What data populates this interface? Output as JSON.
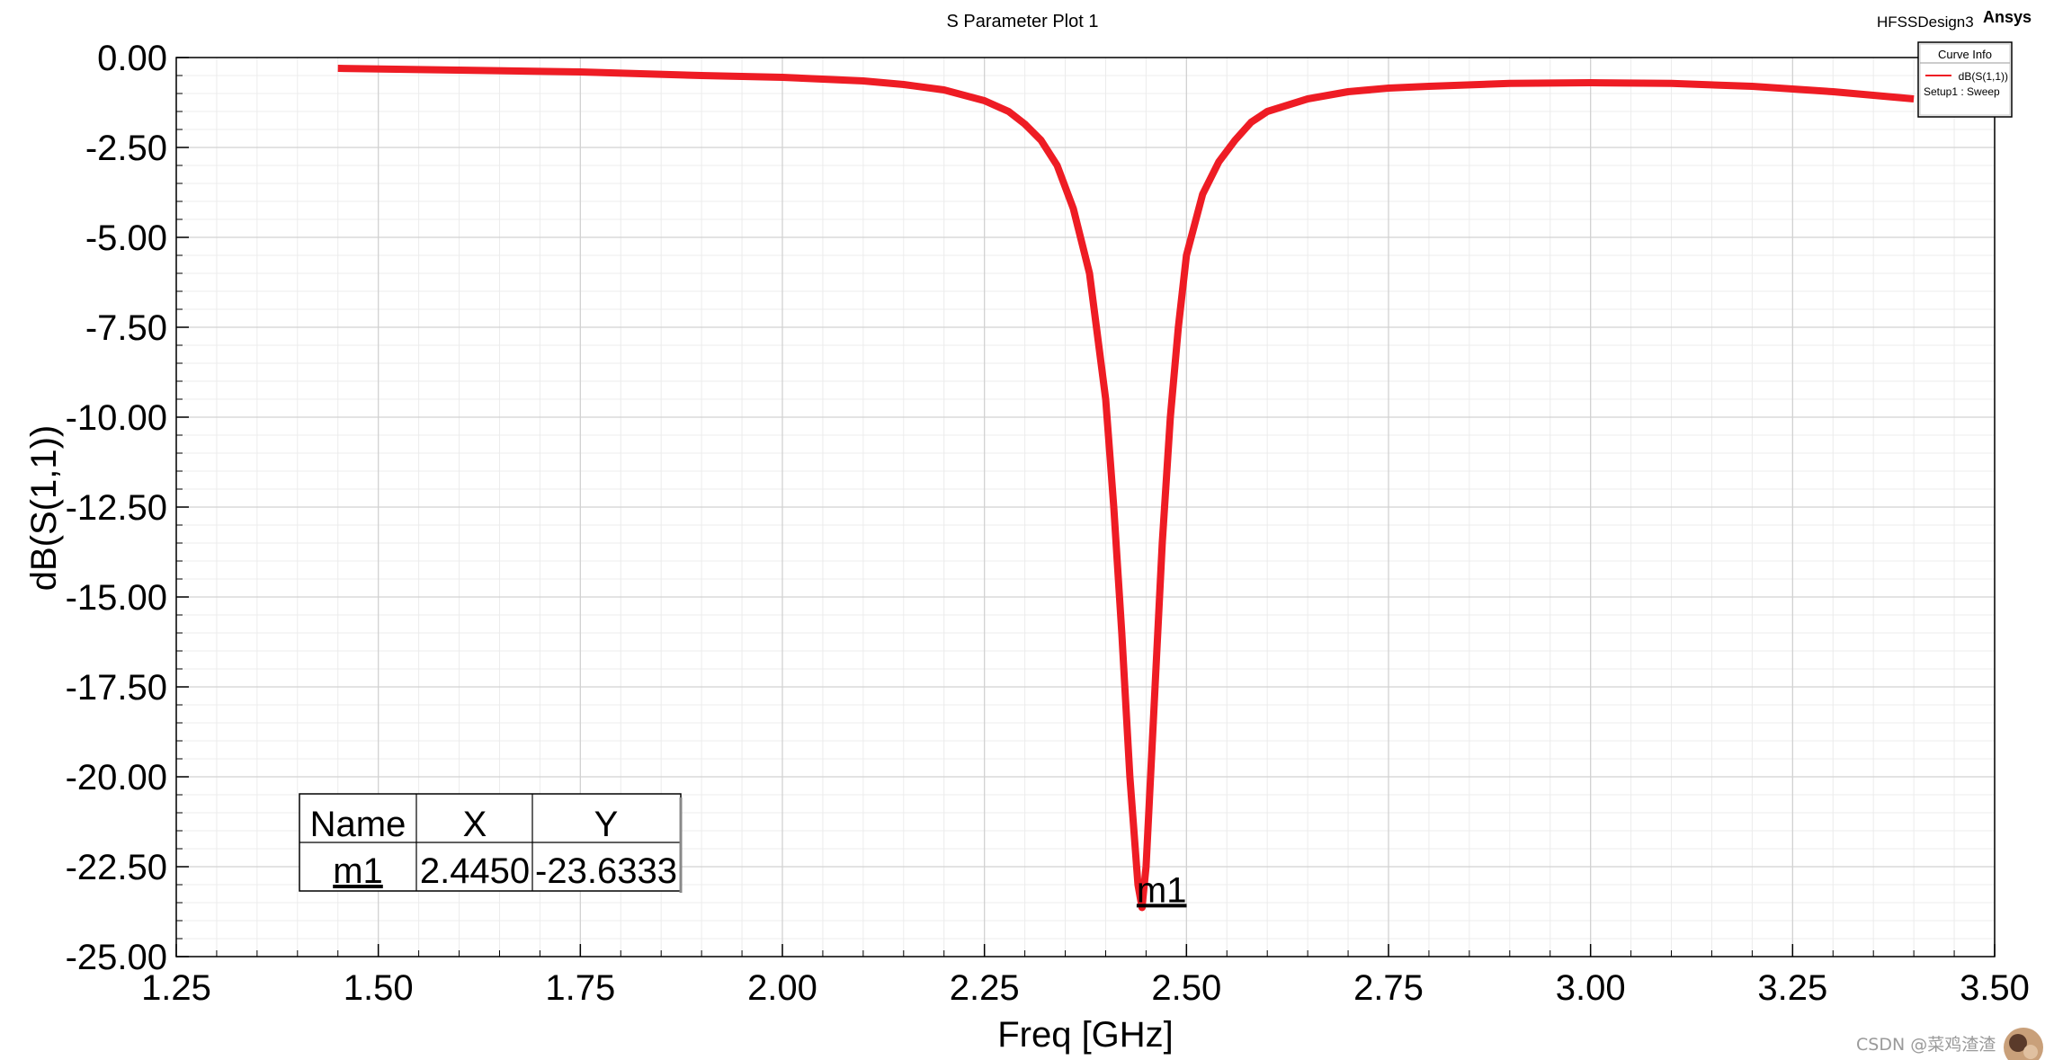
{
  "header": {
    "title": "S Parameter Plot 1",
    "design": "HFSSDesign3",
    "brand": "Ansys"
  },
  "legend": {
    "title": "Curve Info",
    "series_label": "dB(S(1,1))",
    "setup_label": "Setup1 : Sweep"
  },
  "marker_table": {
    "headers": [
      "Name",
      "X",
      "Y"
    ],
    "rows": [
      [
        "m1",
        "2.4450",
        "-23.6333"
      ]
    ]
  },
  "marker": {
    "label": "m1",
    "x": 2.445,
    "y": -23.6333
  },
  "watermark": "CSDN @菜鸡渣渣",
  "colors": {
    "curve": "#ee1c24",
    "grid": "#dcdcdc",
    "axis": "#000000"
  },
  "chart_data": {
    "type": "line",
    "title": "S Parameter Plot 1",
    "xlabel": "Freq [GHz]",
    "ylabel": "dB(S(1,1))",
    "xlim": [
      1.25,
      3.5
    ],
    "ylim": [
      -25.0,
      0.0
    ],
    "xticks": [
      "1.25",
      "1.50",
      "1.75",
      "2.00",
      "2.25",
      "2.50",
      "2.75",
      "3.00",
      "3.25",
      "3.50"
    ],
    "yticks": [
      "0.00",
      "-2.50",
      "-5.00",
      "-7.50",
      "-10.00",
      "-12.50",
      "-15.00",
      "-17.50",
      "-20.00",
      "-22.50",
      "-25.00"
    ],
    "grid": true,
    "legend_position": "top-right",
    "series": [
      {
        "name": "dB(S(1,1))",
        "x": [
          1.45,
          1.6,
          1.75,
          1.9,
          2.0,
          2.1,
          2.15,
          2.2,
          2.25,
          2.28,
          2.3,
          2.32,
          2.34,
          2.36,
          2.38,
          2.4,
          2.41,
          2.42,
          2.43,
          2.44,
          2.445,
          2.45,
          2.46,
          2.47,
          2.48,
          2.49,
          2.5,
          2.52,
          2.54,
          2.56,
          2.58,
          2.6,
          2.65,
          2.7,
          2.75,
          2.8,
          2.9,
          3.0,
          3.1,
          3.2,
          3.3,
          3.4
        ],
        "y": [
          -0.3,
          -0.35,
          -0.4,
          -0.5,
          -0.55,
          -0.65,
          -0.75,
          -0.9,
          -1.2,
          -1.5,
          -1.85,
          -2.3,
          -3.0,
          -4.2,
          -6.0,
          -9.5,
          -12.5,
          -16.0,
          -20.0,
          -23.0,
          -23.6333,
          -22.5,
          -18.0,
          -13.5,
          -10.0,
          -7.5,
          -5.5,
          -3.8,
          -2.9,
          -2.3,
          -1.8,
          -1.5,
          -1.15,
          -0.95,
          -0.85,
          -0.8,
          -0.72,
          -0.7,
          -0.72,
          -0.8,
          -0.95,
          -1.15
        ]
      }
    ]
  }
}
